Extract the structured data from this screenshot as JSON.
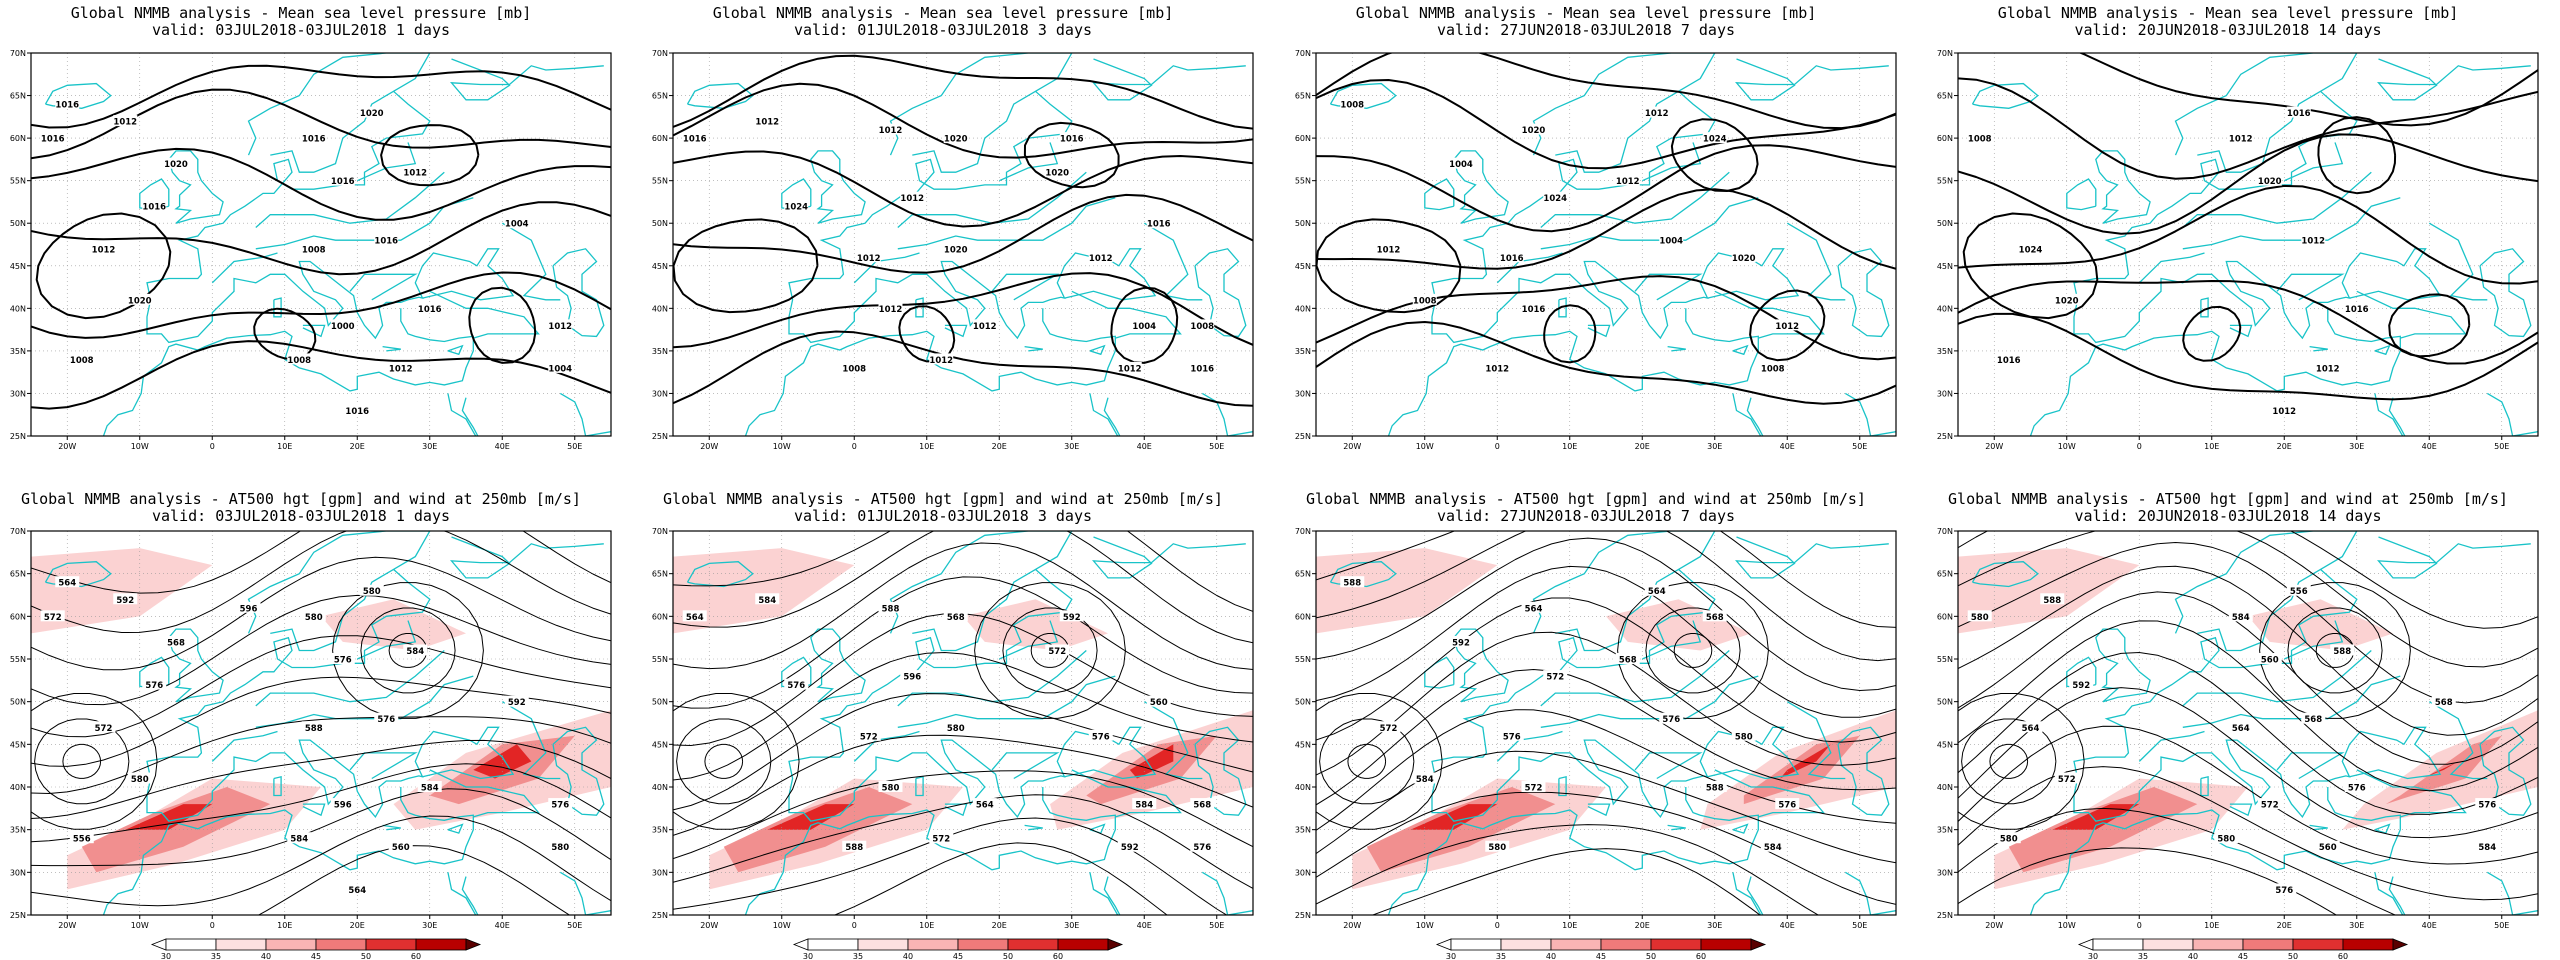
{
  "colors": {
    "coastline": "#19c3c8",
    "contour": "#000000",
    "jet_light": "#fbd0d0",
    "jet_mid": "#f08b8b",
    "jet_strong": "#e02020",
    "jet_max": "#b00000"
  },
  "panels": [
    {
      "id": "mslp-1d",
      "row": 0,
      "col": 0,
      "title1": "Global NMMB analysis - Mean sea level pressure [mb]",
      "title2": "valid: 03JUL2018-03JUL2018  1 days",
      "labels": [
        "1016",
        "1020",
        "1020",
        "1016",
        "1012",
        "1016",
        "1020",
        "1016",
        "1008",
        "1012",
        "1016",
        "1016",
        "1016",
        "1012",
        "1016",
        "1008",
        "1004",
        "1000",
        "1012",
        "1008",
        "1004",
        "1012"
      ]
    },
    {
      "id": "mslp-3d",
      "row": 0,
      "col": 1,
      "title1": "Global NMMB analysis - Mean sea level pressure [mb]",
      "title2": "valid: 01JUL2018-03JUL2018  3 days",
      "labels": [
        "1016",
        "1020",
        "1020",
        "1024",
        "1020",
        "1016",
        "1012",
        "1008",
        "1012",
        "1016",
        "1012",
        "1012",
        "1016",
        "1012",
        "1012",
        "1012",
        "1012",
        "1004",
        "1008",
        "1012"
      ]
    },
    {
      "id": "mslp-7d",
      "row": 0,
      "col": 2,
      "title1": "Global NMMB analysis - Mean sea level pressure [mb]",
      "title2": "valid: 27JUN2018-03JUL2018  7 days",
      "labels": [
        "1020",
        "1024",
        "1024",
        "1016",
        "1020",
        "1016",
        "1012",
        "1012",
        "1008",
        "1008",
        "1004",
        "1012",
        "1012",
        "1012",
        "1004",
        "1008"
      ]
    },
    {
      "id": "mslp-14d",
      "row": 0,
      "col": 3,
      "title1": "Global NMMB analysis - Mean sea level pressure [mb]",
      "title2": "valid: 20JUN2018-03JUL2018  14 days",
      "labels": [
        "1016",
        "1020",
        "1024",
        "1012",
        "1020",
        "1016",
        "1016",
        "1012",
        "1012",
        "1008",
        "1012"
      ]
    },
    {
      "id": "z500-1d",
      "row": 1,
      "col": 0,
      "title1": "Global NMMB analysis - AT500 hgt [gpm] and wind at 250mb [m/s]",
      "title2": "valid: 03JUL2018-03JUL2018  1 days",
      "labels": [
        "564",
        "568",
        "580",
        "576",
        "572",
        "576",
        "580",
        "584",
        "556",
        "560",
        "564",
        "572",
        "580",
        "584",
        "576",
        "588",
        "592",
        "596",
        "576",
        "584",
        "580",
        "592",
        "596"
      ]
    },
    {
      "id": "z500-3d",
      "row": 1,
      "col": 1,
      "title1": "Global NMMB analysis - AT500 hgt [gpm] and wind at 250mb [m/s]",
      "title2": "valid: 01JUL2018-03JUL2018  3 days",
      "labels": [
        "564",
        "568",
        "572",
        "576",
        "580",
        "560",
        "564",
        "568",
        "572",
        "576",
        "584",
        "588",
        "592",
        "596",
        "572",
        "576",
        "580",
        "584",
        "588",
        "592"
      ]
    },
    {
      "id": "z500-7d",
      "row": 1,
      "col": 2,
      "title1": "Global NMMB analysis - AT500 hgt [gpm] and wind at 250mb [m/s]",
      "title2": "valid: 27JUN2018-03JUL2018  7 days",
      "labels": [
        "564",
        "568",
        "572",
        "576",
        "580",
        "572",
        "576",
        "580",
        "584",
        "588",
        "592",
        "564",
        "568",
        "572",
        "576",
        "584",
        "588"
      ]
    },
    {
      "id": "z500-14d",
      "row": 1,
      "col": 3,
      "title1": "Global NMMB analysis - AT500 hgt [gpm] and wind at 250mb [m/s]",
      "title2": "valid: 20JUN2018-03JUL2018  14 days",
      "labels": [
        "556",
        "560",
        "564",
        "568",
        "572",
        "576",
        "580",
        "560",
        "576",
        "580",
        "584",
        "588",
        "592",
        "564",
        "568",
        "572",
        "576",
        "580",
        "584",
        "588"
      ]
    }
  ],
  "lat_ticks": [
    "70N",
    "65N",
    "60N",
    "55N",
    "50N",
    "45N",
    "40N",
    "35N",
    "30N",
    "25N"
  ],
  "lon_ticks": [
    "20W",
    "10W",
    "0",
    "10E",
    "20E",
    "30E",
    "40E",
    "50E"
  ],
  "colorbar_ticks": [
    "30",
    "35",
    "40",
    "45",
    "50",
    "60"
  ]
}
